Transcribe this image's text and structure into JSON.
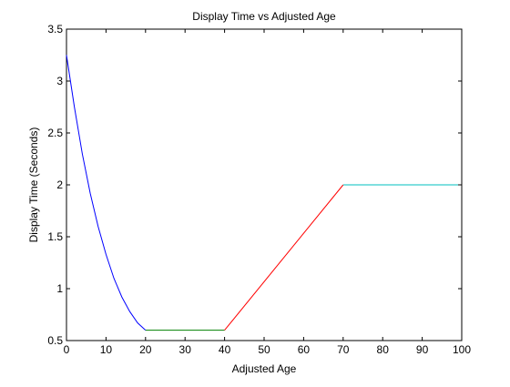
{
  "chart_data": {
    "type": "line",
    "title": "Display Time vs Adjusted Age",
    "xlabel": "Adjusted Age",
    "ylabel": "Display Time (Seconds)",
    "xlim": [
      0,
      100
    ],
    "ylim": [
      0.5,
      3.5
    ],
    "xticks": [
      0,
      10,
      20,
      30,
      40,
      50,
      60,
      70,
      80,
      90,
      100
    ],
    "yticks": [
      0.5,
      1,
      1.5,
      2,
      2.5,
      3,
      3.5
    ],
    "xtick_labels": [
      "0",
      "10",
      "20",
      "30",
      "40",
      "50",
      "60",
      "70",
      "80",
      "90",
      "100"
    ],
    "ytick_labels": [
      "0.5",
      "1",
      "1.5",
      "2",
      "2.5",
      "3",
      "3.5"
    ],
    "grid": false,
    "legend": "none",
    "series": [
      {
        "color": "#0000ff",
        "x": [
          0,
          2,
          4,
          6,
          8,
          10,
          12,
          14,
          16,
          18,
          20
        ],
        "y": [
          3.25,
          2.75,
          2.3,
          1.92,
          1.6,
          1.33,
          1.1,
          0.92,
          0.78,
          0.67,
          0.6
        ]
      },
      {
        "color": "#008000",
        "x": [
          20,
          40
        ],
        "y": [
          0.6,
          0.6
        ]
      },
      {
        "color": "#ff0000",
        "x": [
          40,
          70
        ],
        "y": [
          0.6,
          2.0
        ]
      },
      {
        "color": "#00bfbf",
        "x": [
          70,
          100
        ],
        "y": [
          2.0,
          2.0
        ]
      }
    ]
  }
}
